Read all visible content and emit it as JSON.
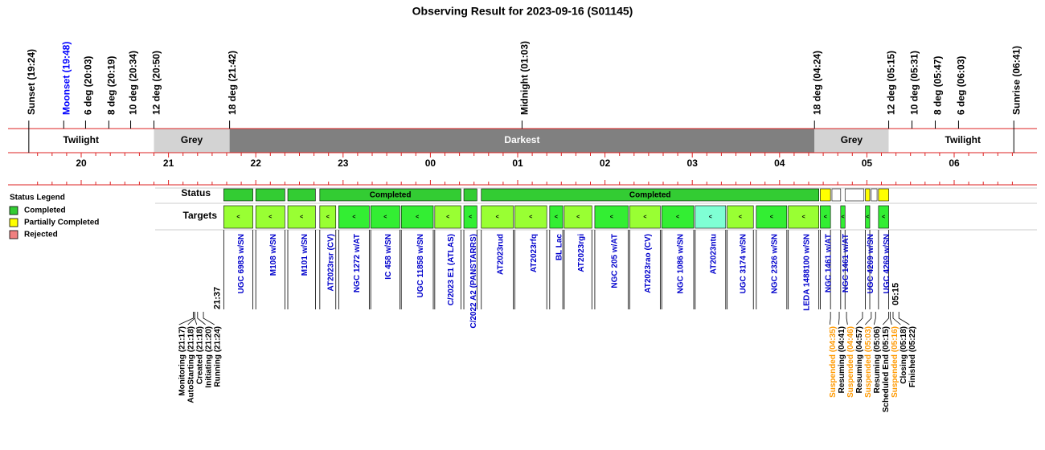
{
  "title": "Observing Result for 2023-09-16 (S01145)",
  "markers": [
    {
      "label": "Sunset (19:24)"
    },
    {
      "label": "Moonset (19:48)",
      "color": "#0000ff"
    },
    {
      "label": "6 deg (20:03)"
    },
    {
      "label": "8 deg (20:19)"
    },
    {
      "label": "10 deg (20:34)"
    },
    {
      "label": "12 deg (20:50)"
    },
    {
      "label": "18 deg (21:42)"
    },
    {
      "label": "Midnight (01:03)"
    },
    {
      "label": "18 deg (04:24)"
    },
    {
      "label": "12 deg (05:15)"
    },
    {
      "label": "10 deg (05:31)"
    },
    {
      "label": "8 deg (05:47)"
    },
    {
      "label": "6 deg (06:03)"
    },
    {
      "label": "Sunrise (06:41)"
    }
  ],
  "bands": [
    {
      "label": "Twilight",
      "color": "#ffffff"
    },
    {
      "label": "Grey",
      "color": "#d3d3d3"
    },
    {
      "label": "Darkest",
      "color": "#808080"
    },
    {
      "label": "Grey",
      "color": "#d3d3d3"
    },
    {
      "label": "Twilight",
      "color": "#ffffff"
    }
  ],
  "hours": [
    "20",
    "21",
    "22",
    "23",
    "00",
    "01",
    "02",
    "03",
    "04",
    "05",
    "06"
  ],
  "legend": {
    "title": "Status Legend",
    "items": [
      {
        "label": "Completed",
        "color": "#33cc33"
      },
      {
        "label": "Partially Completed",
        "color": "#ffff00"
      },
      {
        "label": "Rejected",
        "color": "#f08080"
      }
    ]
  },
  "rows": {
    "status": "Status",
    "targets": "Targets"
  },
  "status": [
    {
      "start": "21:38",
      "end": "21:58",
      "color": "#33cc33"
    },
    {
      "start": "22:00",
      "end": "22:20",
      "color": "#33cc33"
    },
    {
      "start": "22:22",
      "end": "22:41",
      "color": "#33cc33"
    },
    {
      "start": "22:44",
      "end": "00:21",
      "color": "#33cc33",
      "label": "Completed"
    },
    {
      "start": "00:23",
      "end": "00:32",
      "color": "#33cc33"
    },
    {
      "start": "00:35",
      "end": "04:27",
      "color": "#33cc33",
      "label": "Completed"
    },
    {
      "start": "04:28",
      "end": "04:35",
      "color": "#ffff00"
    },
    {
      "start": "04:36",
      "end": "04:42",
      "color": "#ffffff"
    },
    {
      "start": "04:45",
      "end": "04:58",
      "color": "#ffffff"
    },
    {
      "start": "04:59",
      "end": "05:02",
      "color": "#ffff00"
    },
    {
      "start": "05:03",
      "end": "05:07",
      "color": "#ffffff"
    },
    {
      "start": "05:08",
      "end": "05:15",
      "color": "#ffff00"
    }
  ],
  "targets": {
    "symbol": "<",
    "items": [
      {
        "name": "UGC 6983 w/SN",
        "start": "21:38",
        "end": "21:58",
        "color": "#99ff33"
      },
      {
        "name": "M108 w/SN",
        "start": "22:00",
        "end": "22:20",
        "color": "#99ff33"
      },
      {
        "name": "M101 w/SN",
        "start": "22:22",
        "end": "22:41",
        "color": "#99ff33"
      },
      {
        "name": "AT2023rsr (CV)",
        "start": "22:44",
        "end": "22:55",
        "color": "#99ff33"
      },
      {
        "name": "NGC 1272 w/AT",
        "start": "22:57",
        "end": "23:18",
        "color": "#33ee33"
      },
      {
        "name": "IC 458 w/SN",
        "start": "23:19",
        "end": "23:39",
        "color": "#33ee33"
      },
      {
        "name": "UGC 11858 w/SN",
        "start": "23:40",
        "end": "00:02",
        "color": "#33ee33"
      },
      {
        "name": "C/2023 E1 (ATLAS)",
        "start": "00:03",
        "end": "00:21",
        "color": "#99ff33"
      },
      {
        "name": "C/2022 A2 (PANSTARRS)",
        "start": "00:23",
        "end": "00:32",
        "color": "#33ee33"
      },
      {
        "name": "AT2023rud",
        "start": "00:35",
        "end": "00:57",
        "color": "#99ff33"
      },
      {
        "name": "AT2023rfq",
        "start": "00:58",
        "end": "01:20",
        "color": "#99ff33"
      },
      {
        "name": "BL Lac",
        "start": "01:22",
        "end": "01:31",
        "color": "#33ee33"
      },
      {
        "name": "AT2023rgi",
        "start": "01:32",
        "end": "01:51",
        "color": "#99ff33"
      },
      {
        "name": "NGC 205 w/AT",
        "start": "01:53",
        "end": "02:16",
        "color": "#33ee33"
      },
      {
        "name": "AT2023rao (CV)",
        "start": "02:17",
        "end": "02:38",
        "color": "#99ff33"
      },
      {
        "name": "NGC 1086 w/SN",
        "start": "02:39",
        "end": "03:01",
        "color": "#33ee33"
      },
      {
        "name": "AT2023ntu",
        "start": "03:02",
        "end": "03:23",
        "color": "#7fffd4"
      },
      {
        "name": "UGC 3174 w/SN",
        "start": "03:24",
        "end": "03:42",
        "color": "#99ff33"
      },
      {
        "name": "NGC 2326 w/SN",
        "start": "03:44",
        "end": "04:05",
        "color": "#33ee33"
      },
      {
        "name": "LEDA 1488100 w/SN",
        "start": "04:06",
        "end": "04:27",
        "color": "#99ff33"
      },
      {
        "name": "NGC 1461 w/AT",
        "start": "04:28",
        "end": "04:35",
        "color": "#33ee33"
      },
      {
        "name": "NGC 1461 w/AT",
        "start": "04:42",
        "end": "04:45",
        "color": "#33ee33"
      },
      {
        "name": "UGC 4269 w/SN",
        "start": "04:59",
        "end": "05:02",
        "color": "#33ee33"
      },
      {
        "name": "UGC 4269 w/SN",
        "start": "05:08",
        "end": "05:15",
        "color": "#33ee33"
      }
    ]
  },
  "start_label": "21:37",
  "end_label": "05:15",
  "events": [
    {
      "label": "Monitoring (21:17)"
    },
    {
      "label": "AutoStarting (21:18)"
    },
    {
      "label": "Created (21:18)"
    },
    {
      "label": "Initiating (21:20)"
    },
    {
      "label": "Running (21:24)"
    },
    {
      "label": "Suspended (04:35)",
      "color": "#ff9900"
    },
    {
      "label": "Resuming (04:41)"
    },
    {
      "label": "Suspended (04:46)",
      "color": "#ff9900"
    },
    {
      "label": "Resuming (04:57)"
    },
    {
      "label": "Suspended (05:03)",
      "color": "#ff9900"
    },
    {
      "label": "Resuming (05:06)"
    },
    {
      "label": "Scheduled End (05:15)"
    },
    {
      "label": "Suspended (05:16)",
      "color": "#ff9900"
    },
    {
      "label": "Closing (05:18)"
    },
    {
      "label": "Finished (05:22)"
    }
  ]
}
